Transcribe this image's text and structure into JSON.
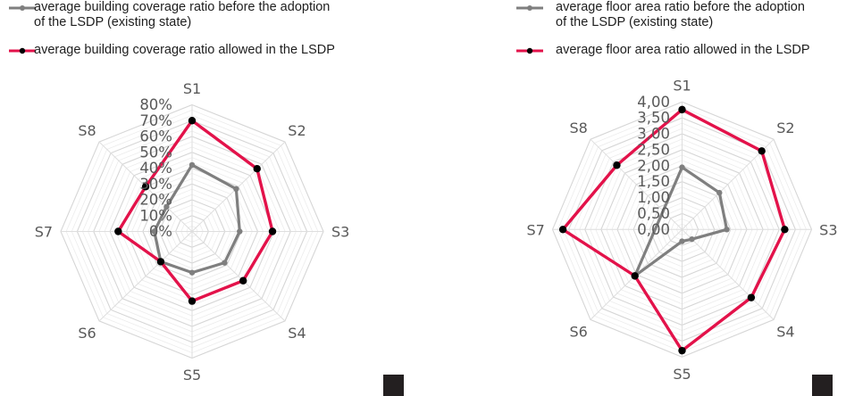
{
  "colors": {
    "existing": "#7f7f7f",
    "allowed": "#e3124a",
    "marker": "#000000",
    "grid": "#d9d9d9",
    "label": "#595959"
  },
  "chart_data": [
    {
      "type": "radar",
      "categories": [
        "S1",
        "S2",
        "S3",
        "S4",
        "S5",
        "S6",
        "S7",
        "S8"
      ],
      "tick_labels": [
        "0%",
        "10%",
        "20%",
        "30%",
        "40%",
        "50%",
        "60%",
        "70%",
        "80%"
      ],
      "ylim": [
        0,
        0.8
      ],
      "grid": true,
      "legend_position": "top",
      "legend": [
        {
          "line1": "average building coverage ratio before the adoption",
          "line2": "of the LSDP (existing state)"
        },
        {
          "line1": "average building coverage ratio allowed in the LSDP"
        }
      ],
      "series": [
        {
          "name": "average building coverage ratio before the adoption of the LSDP (existing state)",
          "color_key": "existing",
          "values": [
            0.42,
            0.38,
            0.29,
            0.28,
            0.26,
            0.27,
            0.23,
            0.22
          ]
        },
        {
          "name": "average building coverage ratio allowed in the LSDP",
          "color_key": "allowed",
          "values": [
            0.7,
            0.56,
            0.49,
            0.44,
            0.44,
            0.27,
            0.45,
            0.4
          ]
        }
      ]
    },
    {
      "type": "radar",
      "categories": [
        "S1",
        "S2",
        "S3",
        "S4",
        "S5",
        "S6",
        "S7",
        "S8"
      ],
      "tick_labels": [
        "0,00",
        "0,50",
        "1,00",
        "1,50",
        "2,00",
        "2,50",
        "3,00",
        "3,50",
        "4,00"
      ],
      "ylim": [
        0,
        4
      ],
      "grid": true,
      "legend_position": "top",
      "legend": [
        {
          "line1": "average floor area ratio before the adoption",
          "line2": "of the LSDP (existing state)"
        },
        {
          "line1": "average floor area ratio allowed in the LSDP"
        }
      ],
      "series": [
        {
          "name": "average floor area ratio before the adoption of the LSDP (existing state)",
          "color_key": "existing",
          "values": [
            1.95,
            1.63,
            1.38,
            0.43,
            0.37,
            2.06,
            null,
            null
          ]
        },
        {
          "name": "average floor area ratio allowed in the LSDP",
          "color_key": "allowed",
          "values": [
            3.76,
            3.48,
            3.17,
            3.02,
            3.8,
            2.06,
            3.68,
            2.85
          ]
        }
      ]
    }
  ]
}
